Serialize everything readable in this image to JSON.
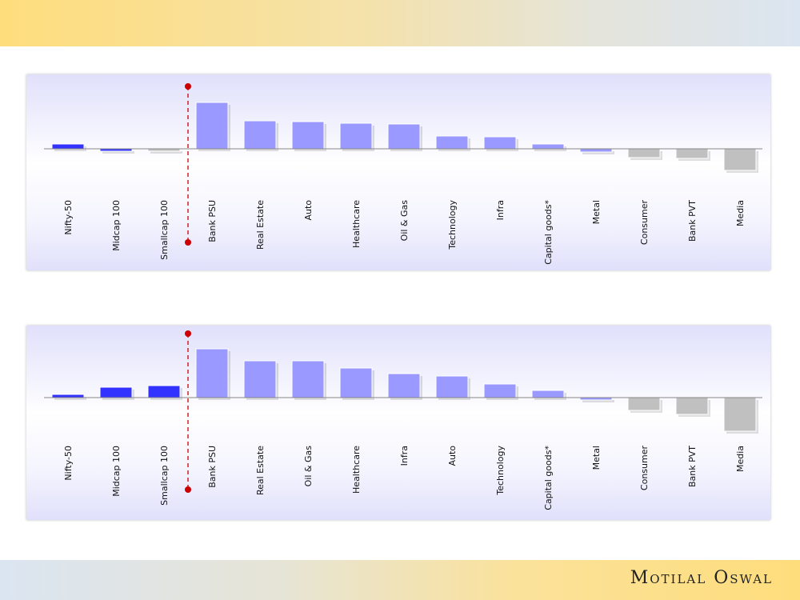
{
  "brand": {
    "logo_text": "Motilal Oswal"
  },
  "colors": {
    "index": "#3333ff",
    "sector_positive": "#9999ff",
    "negative": "#c0c0c0",
    "divider": "#cc0000"
  },
  "chart_data": [
    {
      "type": "bar",
      "title": "",
      "xlabel": "",
      "ylabel": "",
      "ylim": [
        -15,
        30
      ],
      "grid": false,
      "note": "values estimated relative (no axis shown)",
      "categories": [
        "Nifty-50",
        "Midcap 100",
        "Smallcap 100",
        "Bank PSU",
        "Real Estate",
        "Auto",
        "Healthcare",
        "Oil & Gas",
        "Technology",
        "Infra",
        "Capital goods*",
        "Metal",
        "Consumer",
        "Bank PVT",
        "Media"
      ],
      "values": [
        3,
        -1.5,
        -1.5,
        29,
        17.5,
        17,
        16,
        15.5,
        8,
        7.5,
        3,
        -2,
        -5.5,
        -6,
        -13.5
      ],
      "bar_colors": [
        "#3333ff",
        "#3333ff",
        "#c0c0c0",
        "#9999ff",
        "#9999ff",
        "#9999ff",
        "#9999ff",
        "#9999ff",
        "#9999ff",
        "#9999ff",
        "#9999ff",
        "#9999ff",
        "#c0c0c0",
        "#c0c0c0",
        "#c0c0c0"
      ]
    },
    {
      "type": "bar",
      "title": "",
      "xlabel": "",
      "ylabel": "",
      "ylim": [
        -22,
        32
      ],
      "grid": false,
      "note": "values estimated relative (no axis shown)",
      "categories": [
        "Nifty-50",
        "Midcap 100",
        "Smallcap 100",
        "Bank PSU",
        "Real Estate",
        "Oil & Gas",
        "Healthcare",
        "Infra",
        "Auto",
        "Technology",
        "Capital goods*",
        "Metal",
        "Consumer",
        "Bank PVT",
        "Media"
      ],
      "values": [
        2,
        6.5,
        7.5,
        30.5,
        23,
        23,
        18.5,
        15,
        13.5,
        8.5,
        4.5,
        -1.5,
        -8,
        -10.5,
        -21
      ],
      "bar_colors": [
        "#3333ff",
        "#3333ff",
        "#3333ff",
        "#9999ff",
        "#9999ff",
        "#9999ff",
        "#9999ff",
        "#9999ff",
        "#9999ff",
        "#9999ff",
        "#9999ff",
        "#9999ff",
        "#c0c0c0",
        "#c0c0c0",
        "#c0c0c0"
      ]
    }
  ]
}
